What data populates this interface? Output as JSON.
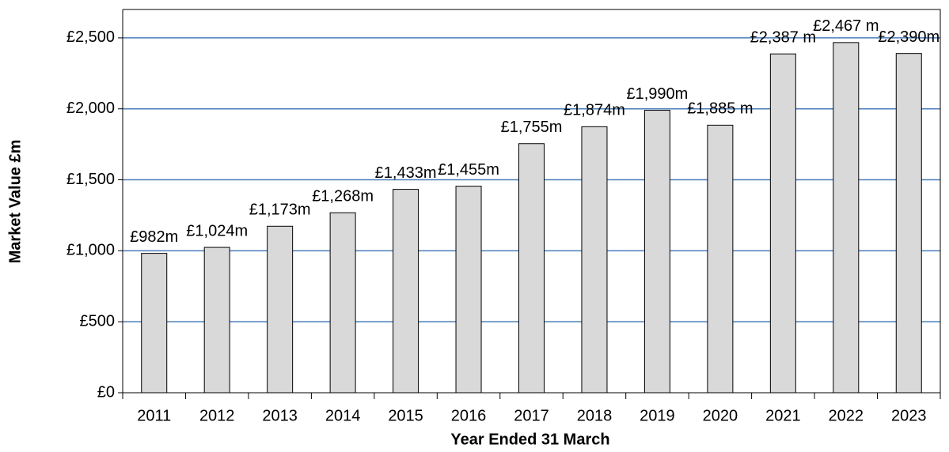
{
  "chart_data": {
    "type": "bar",
    "x_label": "Year Ended 31 March",
    "y_label": "Market Value £m",
    "categories": [
      "2011",
      "2012",
      "2013",
      "2014",
      "2015",
      "2016",
      "2017",
      "2018",
      "2019",
      "2020",
      "2021",
      "2022",
      "2023"
    ],
    "values": [
      982,
      1024,
      1173,
      1268,
      1433,
      1455,
      1755,
      1874,
      1990,
      1885,
      2387,
      2467,
      2390
    ],
    "value_labels": [
      "£982m",
      "£1,024m",
      "£1,173m",
      "£1,268m",
      "£1,433m",
      "£1,455m",
      "£1,755m",
      "£1,874m",
      "£1,990m",
      "£1,885 m",
      "£2,387 m",
      "£2,467 m",
      "£2,390m"
    ],
    "color": "#d9d9d9",
    "grid_color": "#4a7ebb",
    "ylim": [
      0,
      2700
    ],
    "yticks": [
      {
        "value": 0,
        "label": "£0"
      },
      {
        "value": 500,
        "label": "£500"
      },
      {
        "value": 1000,
        "label": "£1,000"
      },
      {
        "value": 1500,
        "label": "£1,500"
      },
      {
        "value": 2000,
        "label": "£2,000"
      },
      {
        "value": 2500,
        "label": "£2,500"
      }
    ],
    "grid": true
  }
}
